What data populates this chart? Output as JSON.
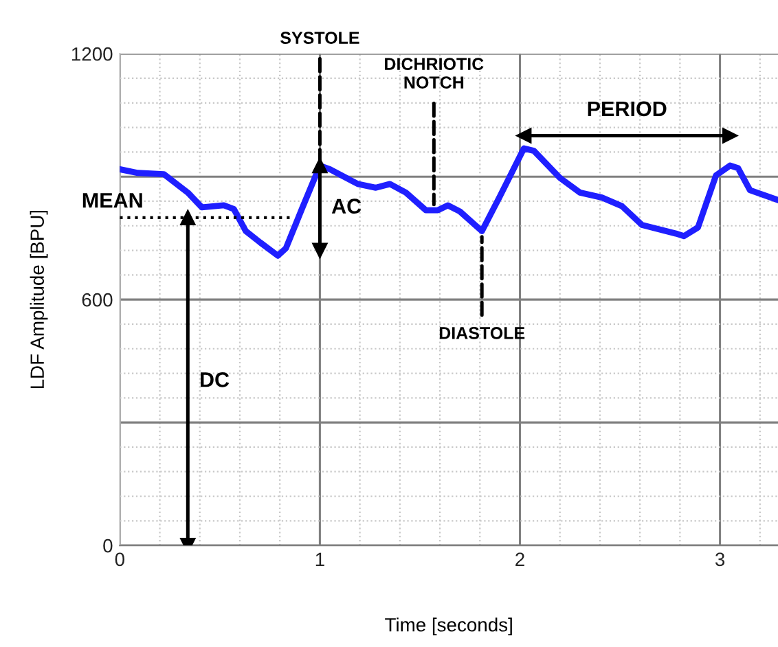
{
  "chart_data": {
    "type": "line",
    "xlabel": "Time [seconds]",
    "ylabel": "LDF Amplitude [BPU]",
    "xlim": [
      0,
      3.29
    ],
    "ylim": [
      0,
      1200
    ],
    "xticks": [
      0,
      1,
      2,
      3
    ],
    "yticks": [
      0,
      {
        "value": 300,
        "label": null
      },
      600,
      {
        "value": 900,
        "label": null
      },
      1200
    ],
    "grid": true,
    "series": [
      {
        "color": "#1f1fff",
        "x": [
          0,
          0.09,
          0.22,
          0.34,
          0.41,
          0.52,
          0.57,
          0.63,
          0.7,
          0.79,
          0.83,
          0.91,
          1.0,
          1.05,
          1.19,
          1.28,
          1.35,
          1.43,
          1.53,
          1.59,
          1.64,
          1.7,
          1.81,
          1.9,
          2.02,
          2.07,
          2.2,
          2.3,
          2.41,
          2.51,
          2.61,
          2.78,
          2.82,
          2.89,
          2.98,
          3.05,
          3.09,
          3.15,
          3.29
        ],
        "values": [
          918,
          909,
          906,
          861,
          825,
          830,
          821,
          767,
          740,
          707,
          725,
          821,
          927,
          918,
          882,
          873,
          882,
          861,
          818,
          818,
          830,
          815,
          767,
          852,
          969,
          963,
          897,
          861,
          849,
          828,
          782,
          761,
          755,
          776,
          903,
          927,
          921,
          867,
          843
        ]
      },
      {
        "name": "MEAN",
        "color": "#000000",
        "line_style": "dotted",
        "x": [
          0,
          0.87
        ],
        "values": [
          800,
          800
        ]
      },
      {
        "name": "DC",
        "color": "#000000",
        "marker": "triangle",
        "x": [
          0.34,
          0.34
        ],
        "values": [
          800,
          0
        ]
      },
      {
        "name": "AC",
        "color": "#000000",
        "marker": "triangle",
        "x": [
          1.0,
          1.0
        ],
        "values": [
          927,
          720
        ]
      },
      {
        "name": "PERIOD",
        "color": "#000000",
        "marker": "triangle",
        "x": [
          2.02,
          3.05
        ],
        "values": [
          1000,
          1000
        ]
      }
    ],
    "annotations": [
      {
        "text": "SYSTOLE",
        "x": 1.0,
        "y": 927
      },
      {
        "text": "DICHRIOTIC\nNOTCH",
        "x": 1.57,
        "y": 818
      },
      {
        "text": "DIASTOLE",
        "x": 1.81,
        "y": 767
      }
    ]
  }
}
